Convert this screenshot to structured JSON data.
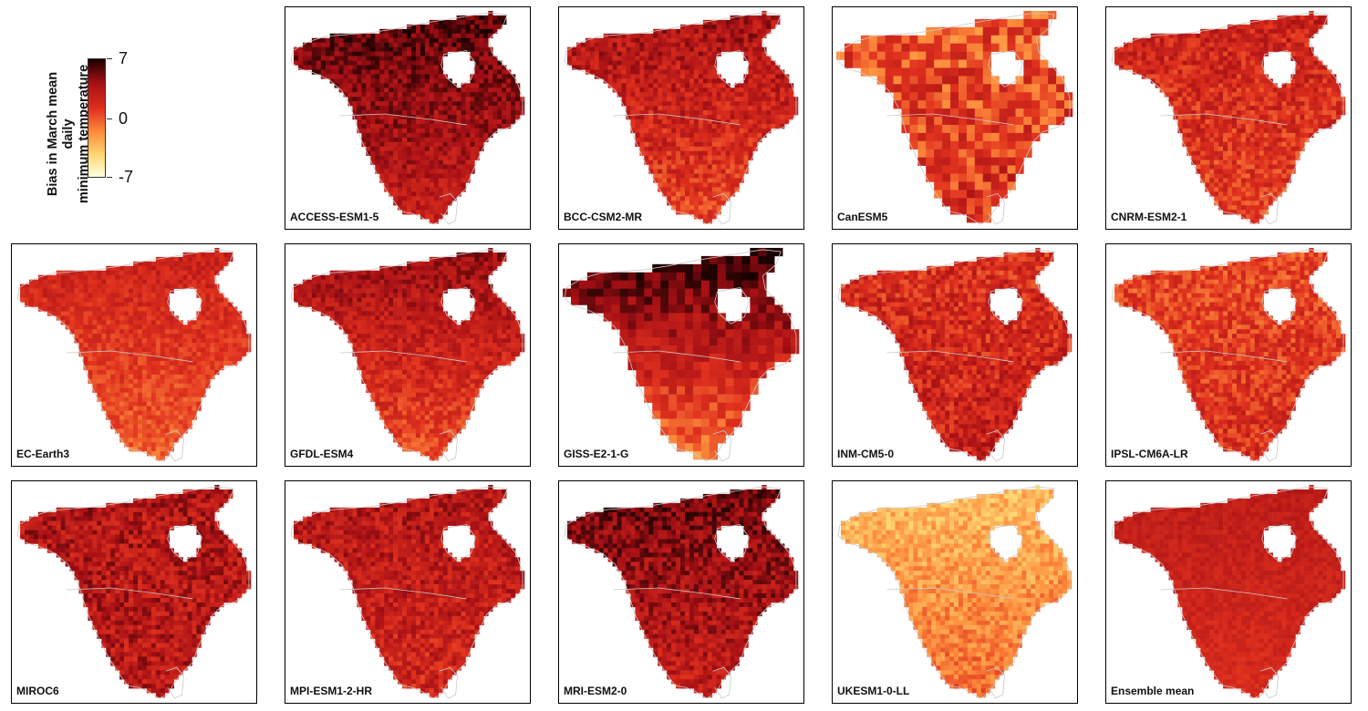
{
  "legend": {
    "title_line1": "Bias in March mean daily",
    "title_line2": "minimum temperature (K)",
    "ticks": [
      "7",
      "0",
      "-7"
    ],
    "vmin": -7,
    "vmax": 7
  },
  "colors": {
    "low": "#ffffe0",
    "mid": "#fd8d3c",
    "high": "#1a0000",
    "coastline": "#c8c8c8"
  },
  "panels": [
    {
      "name": "ACCESS-ESM1-5",
      "mean_bias": 3.5,
      "north_bias": 6.0,
      "south_bias": 2.5,
      "variability": 1.5
    },
    {
      "name": "BCC-CSM2-MR",
      "mean_bias": 2.0,
      "north_bias": 4.0,
      "south_bias": 0.5,
      "variability": 1.8
    },
    {
      "name": "CanESM5",
      "mean_bias": 0.5,
      "north_bias": 0.0,
      "south_bias": 1.5,
      "variability": 2.5
    },
    {
      "name": "CNRM-ESM2-1",
      "mean_bias": 1.5,
      "north_bias": 2.5,
      "south_bias": 0.5,
      "variability": 1.8
    },
    {
      "name": "EC-Earth3",
      "mean_bias": 0.5,
      "north_bias": 2.5,
      "south_bias": -0.5,
      "variability": 1.2
    },
    {
      "name": "GFDL-ESM4",
      "mean_bias": 1.5,
      "north_bias": 4.5,
      "south_bias": 0.0,
      "variability": 1.5
    },
    {
      "name": "GISS-E2-1-G",
      "mean_bias": 2.0,
      "north_bias": 7.0,
      "south_bias": -1.5,
      "variability": 1.5
    },
    {
      "name": "INM-CM5-0",
      "mean_bias": 2.0,
      "north_bias": 1.5,
      "south_bias": 2.5,
      "variability": 2.0
    },
    {
      "name": "IPSL-CM6A-LR",
      "mean_bias": 1.0,
      "north_bias": 0.5,
      "south_bias": 1.5,
      "variability": 1.8
    },
    {
      "name": "MIROC6",
      "mean_bias": 3.0,
      "north_bias": 3.5,
      "south_bias": 3.0,
      "variability": 2.0
    },
    {
      "name": "MPI-ESM1-2-HR",
      "mean_bias": 2.5,
      "north_bias": 3.5,
      "south_bias": 2.0,
      "variability": 1.8
    },
    {
      "name": "MRI-ESM2-0",
      "mean_bias": 3.0,
      "north_bias": 5.5,
      "south_bias": 2.5,
      "variability": 1.8
    },
    {
      "name": "UKESM1-0-LL",
      "mean_bias": -2.0,
      "north_bias": -3.5,
      "south_bias": -0.5,
      "variability": 1.5
    },
    {
      "name": "Ensemble mean",
      "mean_bias": 2.0,
      "north_bias": 3.0,
      "south_bias": 1.5,
      "variability": 0.8
    }
  ]
}
